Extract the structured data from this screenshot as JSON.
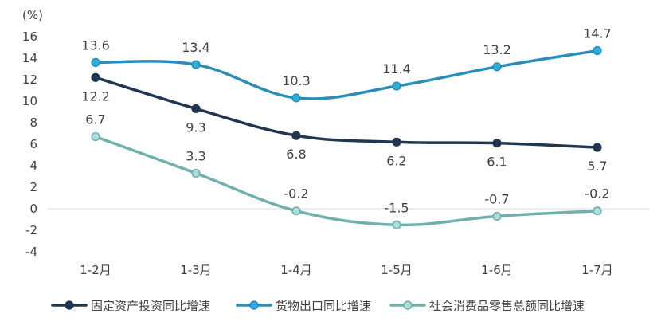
{
  "chart_data": {
    "type": "line",
    "unit_label": "(%)",
    "categories": [
      "1-2月",
      "1-3月",
      "1-4月",
      "1-5月",
      "1-6月",
      "1-7月"
    ],
    "ylim": [
      -4,
      16
    ],
    "yticks": [
      -4,
      -2,
      0,
      2,
      4,
      6,
      8,
      10,
      12,
      14,
      16
    ],
    "grid": false,
    "legend_position": "bottom",
    "series": [
      {
        "name": "固定资产投资同比增速",
        "values": [
          12.2,
          9.3,
          6.8,
          6.2,
          6.1,
          5.7
        ],
        "labels": [
          "12.2",
          "9.3",
          "6.8",
          "6.2",
          "6.1",
          "5.7"
        ],
        "color": "#1f3550",
        "marker_fill": "#1f3550",
        "label_position": "below"
      },
      {
        "name": "货物出口同比增速",
        "values": [
          13.6,
          13.4,
          10.3,
          11.4,
          13.2,
          14.7
        ],
        "labels": [
          "13.6",
          "13.4",
          "10.3",
          "11.4",
          "13.2",
          "14.7"
        ],
        "color": "#2a8db8",
        "marker_fill": "#2bb0de",
        "label_position": "above"
      },
      {
        "name": "社会消费品零售总额同比增速",
        "values": [
          6.7,
          3.3,
          -0.2,
          -1.5,
          -0.7,
          -0.2
        ],
        "labels": [
          "6.7",
          "3.3",
          "-0.2",
          "-1.5",
          "-0.7",
          "-0.2"
        ],
        "color": "#6fb0ad",
        "marker_fill": "#a8dedc",
        "label_position": "above"
      }
    ]
  }
}
